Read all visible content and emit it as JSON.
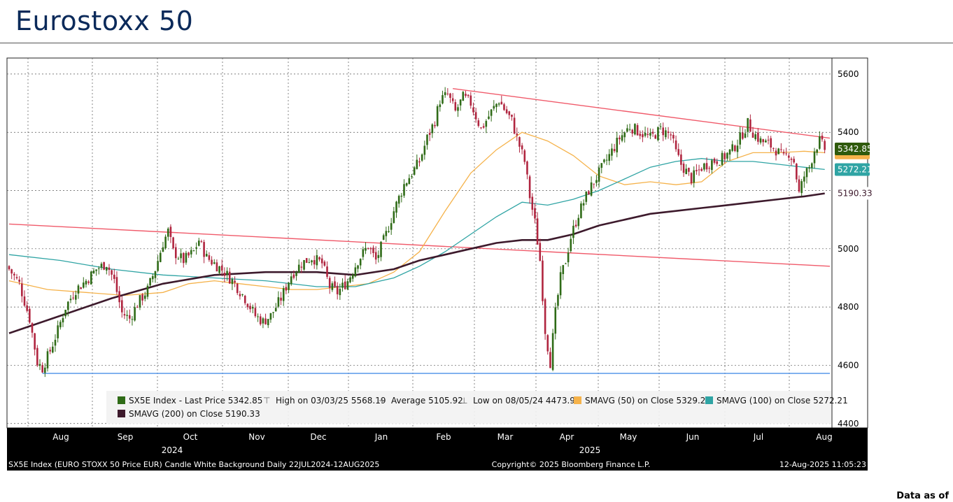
{
  "page": {
    "title": "Eurostoxx 50",
    "data_as_of": "Data as of"
  },
  "chart_data": {
    "type": "candlestick",
    "ticker": "SX5E Index",
    "y_ticks": [
      4400,
      4600,
      4800,
      5000,
      5200,
      5400,
      5600
    ],
    "ylim": [
      4385,
      5655
    ],
    "x_month_labels": [
      "Aug",
      "Sep",
      "Oct",
      "Nov",
      "Dec",
      "Jan",
      "Feb",
      "Mar",
      "Apr",
      "May",
      "Jun",
      "Jul",
      "Aug"
    ],
    "x_year_labels": [
      "2024",
      "2025"
    ],
    "grid": true,
    "price_path": [
      [
        0,
        4930
      ],
      [
        4,
        4880
      ],
      [
        8,
        4760
      ],
      [
        11,
        4610
      ],
      [
        13,
        4590
      ],
      [
        16,
        4650
      ],
      [
        19,
        4720
      ],
      [
        22,
        4800
      ],
      [
        26,
        4860
      ],
      [
        30,
        4890
      ],
      [
        34,
        4930
      ],
      [
        38,
        4950
      ],
      [
        41,
        4890
      ],
      [
        44,
        4780
      ],
      [
        47,
        4760
      ],
      [
        50,
        4810
      ],
      [
        54,
        4860
      ],
      [
        57,
        4930
      ],
      [
        60,
        5020
      ],
      [
        62,
        5060
      ],
      [
        64,
        4990
      ],
      [
        68,
        4960
      ],
      [
        72,
        4990
      ],
      [
        74,
        5030
      ],
      [
        77,
        4970
      ],
      [
        80,
        4950
      ],
      [
        84,
        4920
      ],
      [
        88,
        4880
      ],
      [
        92,
        4830
      ],
      [
        96,
        4770
      ],
      [
        99,
        4750
      ],
      [
        102,
        4770
      ],
      [
        106,
        4830
      ],
      [
        110,
        4910
      ],
      [
        114,
        4950
      ],
      [
        118,
        4970
      ],
      [
        122,
        4950
      ],
      [
        125,
        4870
      ],
      [
        128,
        4850
      ],
      [
        132,
        4890
      ],
      [
        136,
        4960
      ],
      [
        140,
        5010
      ],
      [
        143,
        4960
      ],
      [
        147,
        5050
      ],
      [
        150,
        5130
      ],
      [
        154,
        5220
      ],
      [
        157,
        5260
      ],
      [
        160,
        5300
      ],
      [
        163,
        5380
      ],
      [
        166,
        5440
      ],
      [
        168,
        5510
      ],
      [
        171,
        5530
      ],
      [
        174,
        5470
      ],
      [
        177,
        5520
      ],
      [
        180,
        5500
      ],
      [
        184,
        5410
      ],
      [
        188,
        5470
      ],
      [
        191,
        5510
      ],
      [
        193,
        5480
      ],
      [
        196,
        5440
      ],
      [
        198,
        5380
      ],
      [
        201,
        5300
      ],
      [
        203,
        5180
      ],
      [
        205,
        5090
      ],
      [
        207,
        4960
      ],
      [
        209,
        4720
      ],
      [
        211,
        4610
      ],
      [
        213,
        4780
      ],
      [
        215,
        4900
      ],
      [
        217,
        4960
      ],
      [
        219,
        5040
      ],
      [
        222,
        5120
      ],
      [
        226,
        5200
      ],
      [
        230,
        5260
      ],
      [
        234,
        5320
      ],
      [
        238,
        5380
      ],
      [
        242,
        5420
      ],
      [
        246,
        5400
      ],
      [
        250,
        5380
      ],
      [
        254,
        5410
      ],
      [
        258,
        5390
      ],
      [
        260,
        5330
      ],
      [
        262,
        5290
      ],
      [
        266,
        5240
      ],
      [
        270,
        5280
      ],
      [
        274,
        5300
      ],
      [
        278,
        5310
      ],
      [
        282,
        5340
      ],
      [
        285,
        5380
      ],
      [
        288,
        5430
      ],
      [
        290,
        5400
      ],
      [
        293,
        5370
      ],
      [
        296,
        5360
      ],
      [
        299,
        5340
      ],
      [
        302,
        5310
      ],
      [
        304,
        5330
      ],
      [
        306,
        5300
      ],
      [
        308,
        5190
      ],
      [
        310,
        5250
      ],
      [
        312,
        5280
      ],
      [
        314,
        5340
      ],
      [
        316,
        5370
      ],
      [
        318,
        5342.85
      ]
    ],
    "series": [
      {
        "name": "SMAVG (50)  on Close",
        "color": "#f5b24a",
        "last_label": "5329.21",
        "values": [
          [
            0,
            4890
          ],
          [
            15,
            4860
          ],
          [
            30,
            4850
          ],
          [
            45,
            4840
          ],
          [
            60,
            4850
          ],
          [
            70,
            4880
          ],
          [
            80,
            4890
          ],
          [
            90,
            4880
          ],
          [
            100,
            4870
          ],
          [
            110,
            4860
          ],
          [
            120,
            4860
          ],
          [
            130,
            4870
          ],
          [
            140,
            4880
          ],
          [
            150,
            4920
          ],
          [
            160,
            4990
          ],
          [
            170,
            5130
          ],
          [
            180,
            5260
          ],
          [
            190,
            5340
          ],
          [
            200,
            5400
          ],
          [
            210,
            5370
          ],
          [
            220,
            5320
          ],
          [
            230,
            5250
          ],
          [
            240,
            5220
          ],
          [
            250,
            5230
          ],
          [
            260,
            5220
          ],
          [
            270,
            5230
          ],
          [
            280,
            5300
          ],
          [
            290,
            5330
          ],
          [
            300,
            5330
          ],
          [
            310,
            5335
          ],
          [
            318,
            5330
          ]
        ]
      },
      {
        "name": "SMAVG (100)  on Close",
        "color": "#2fa4a4",
        "last_label": "5272.21",
        "values": [
          [
            0,
            4980
          ],
          [
            20,
            4960
          ],
          [
            40,
            4930
          ],
          [
            60,
            4910
          ],
          [
            80,
            4900
          ],
          [
            100,
            4890
          ],
          [
            120,
            4870
          ],
          [
            135,
            4870
          ],
          [
            150,
            4900
          ],
          [
            160,
            4940
          ],
          [
            170,
            4990
          ],
          [
            180,
            5050
          ],
          [
            190,
            5110
          ],
          [
            200,
            5160
          ],
          [
            210,
            5150
          ],
          [
            220,
            5170
          ],
          [
            230,
            5200
          ],
          [
            240,
            5240
          ],
          [
            250,
            5280
          ],
          [
            260,
            5300
          ],
          [
            270,
            5310
          ],
          [
            280,
            5300
          ],
          [
            290,
            5300
          ],
          [
            300,
            5290
          ],
          [
            310,
            5280
          ],
          [
            318,
            5272.21
          ]
        ]
      },
      {
        "name": "SMAVG (200)  on Close",
        "color": "#3d1a2c",
        "last_label": "5190.33",
        "values": [
          [
            0,
            4710
          ],
          [
            20,
            4770
          ],
          [
            40,
            4830
          ],
          [
            60,
            4880
          ],
          [
            80,
            4910
          ],
          [
            100,
            4920
          ],
          [
            120,
            4920
          ],
          [
            135,
            4910
          ],
          [
            150,
            4930
          ],
          [
            160,
            4960
          ],
          [
            170,
            4980
          ],
          [
            180,
            5000
          ],
          [
            190,
            5020
          ],
          [
            200,
            5030
          ],
          [
            210,
            5030
          ],
          [
            220,
            5050
          ],
          [
            230,
            5080
          ],
          [
            240,
            5100
          ],
          [
            250,
            5120
          ],
          [
            260,
            5130
          ],
          [
            270,
            5140
          ],
          [
            280,
            5150
          ],
          [
            290,
            5160
          ],
          [
            300,
            5170
          ],
          [
            310,
            5180
          ],
          [
            318,
            5190.33
          ]
        ]
      }
    ],
    "trendlines": [
      {
        "name": "upper-resistance",
        "color": "#f05a6a",
        "from": [
          173,
          5550
        ],
        "to": [
          320,
          5380
        ]
      },
      {
        "name": "lower-trend",
        "color": "#f05a6a",
        "from": [
          0,
          5085
        ],
        "to": [
          320,
          4940
        ]
      },
      {
        "name": "support",
        "color": "#4a8fe8",
        "from": [
          13,
          4572
        ],
        "to": [
          320,
          4572
        ]
      }
    ],
    "last_price_label": "5342.85",
    "legend": [
      {
        "name": "SX5E Index - Last Price 5342.85",
        "color": "#2f6b17",
        "marker": "candle"
      },
      {
        "name": "High on 03/03/25 5568.19",
        "color": "#666666",
        "marker": "high"
      },
      {
        "name": "Average 5105.92",
        "color": "#666666",
        "marker": "avg"
      },
      {
        "name": "Low on 08/05/24 4473.94",
        "color": "#666666",
        "marker": "low"
      },
      {
        "name": "SMAVG (50)  on Close 5329.21",
        "color": "#f5b24a",
        "marker": "box"
      },
      {
        "name": "SMAVG (100)  on Close 5272.21",
        "color": "#2fa4a4",
        "marker": "box"
      },
      {
        "name": "SMAVG (200)  on Close  5190.33",
        "color": "#3d1a2c",
        "marker": "box"
      }
    ],
    "footer": {
      "left": "SX5E Index (EURO STOXX 50 Price EUR) Candle White Background  Daily 22JUL2024-12AUG2025",
      "center": "Copyright© 2025 Bloomberg Finance L.P.",
      "right": "12-Aug-2025 11:05:23"
    },
    "colors": {
      "up": "#2f6b17",
      "down": "#b0253f",
      "axis_bg": "#000000",
      "axis_text": "#ffffff"
    }
  }
}
